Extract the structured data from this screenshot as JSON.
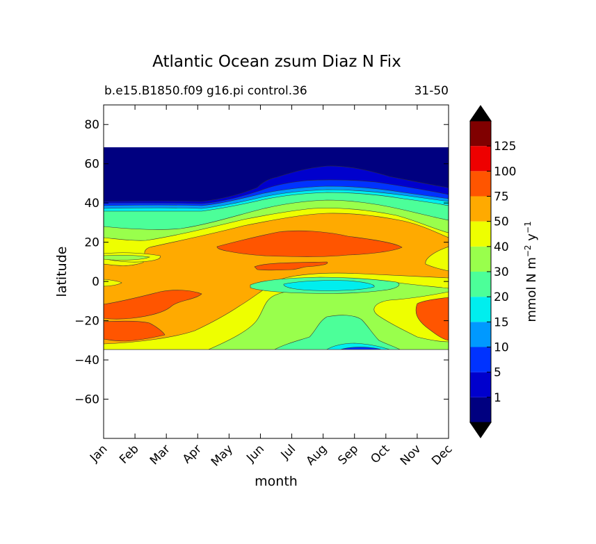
{
  "chart_data": {
    "type": "heatmap",
    "subtype": "filled-contour",
    "title": "Atlantic Ocean zsum Diaz N Fix",
    "subtitle_left": "b.e15.B1850.f09 g16.pi control.36",
    "subtitle_right": "31-50",
    "xlabel": "month",
    "ylabel": "latitude",
    "x_categories": [
      "Jan",
      "Feb",
      "Mar",
      "Apr",
      "May",
      "Jun",
      "Jul",
      "Aug",
      "Sep",
      "Oct",
      "Nov",
      "Dec"
    ],
    "xlim": [
      1,
      12
    ],
    "ylim": [
      -80,
      90
    ],
    "y_ticks": [
      -60,
      -40,
      -20,
      0,
      20,
      40,
      60,
      80
    ],
    "y_tick_labels": [
      "−60",
      "−40",
      "−20",
      "0",
      "20",
      "40",
      "60",
      "80"
    ],
    "data_lat_range": [
      -34,
      68
    ],
    "colorbar": {
      "label": "mmol N m−2 y−1",
      "levels": [
        0,
        1,
        5,
        10,
        15,
        20,
        30,
        40,
        50,
        75,
        100,
        125,
        150
      ],
      "tick_labels": [
        "1",
        "5",
        "10",
        "15",
        "20",
        "30",
        "40",
        "50",
        "75",
        "100",
        "125"
      ],
      "colors": [
        "#000080",
        "#0000cd",
        "#0033ff",
        "#0099ff",
        "#00eeee",
        "#4cff99",
        "#99ff4c",
        "#eeff00",
        "#ffaa00",
        "#ff5500",
        "#ee0000",
        "#800000"
      ],
      "extend": "both",
      "under_color": "#000000",
      "over_color": "#000000"
    },
    "background_level_color": "#000080",
    "features": [
      {
        "level": "75-100",
        "month_range": [
          5.6,
          10.2
        ],
        "lat_range": [
          11,
          26
        ],
        "peak": "Jul-Aug near 18N"
      },
      {
        "level": "75-100",
        "month_range": [
          1.0,
          4.0
        ],
        "lat_range": [
          -17,
          -6
        ],
        "note": "southern tropical maximum early in year"
      },
      {
        "level": "75-100",
        "month_range": [
          1.0,
          2.9
        ],
        "lat_range": [
          -30,
          -21
        ]
      },
      {
        "level": "75-100",
        "month_range": [
          11.0,
          12.0
        ],
        "lat_range": [
          -30,
          -7
        ]
      },
      {
        "level": "20-30",
        "month_range": [
          7.3,
          10.0
        ],
        "lat_range": [
          -5,
          0
        ]
      },
      {
        "level": "20-30",
        "month_range": [
          8.2,
          9.2
        ],
        "lat_range": [
          -34,
          -18
        ]
      },
      {
        "level": "0-1",
        "month_range": [
          1,
          12
        ],
        "lat_range": [
          42,
          68
        ],
        "note": "dark blue band north of 40N"
      }
    ]
  }
}
